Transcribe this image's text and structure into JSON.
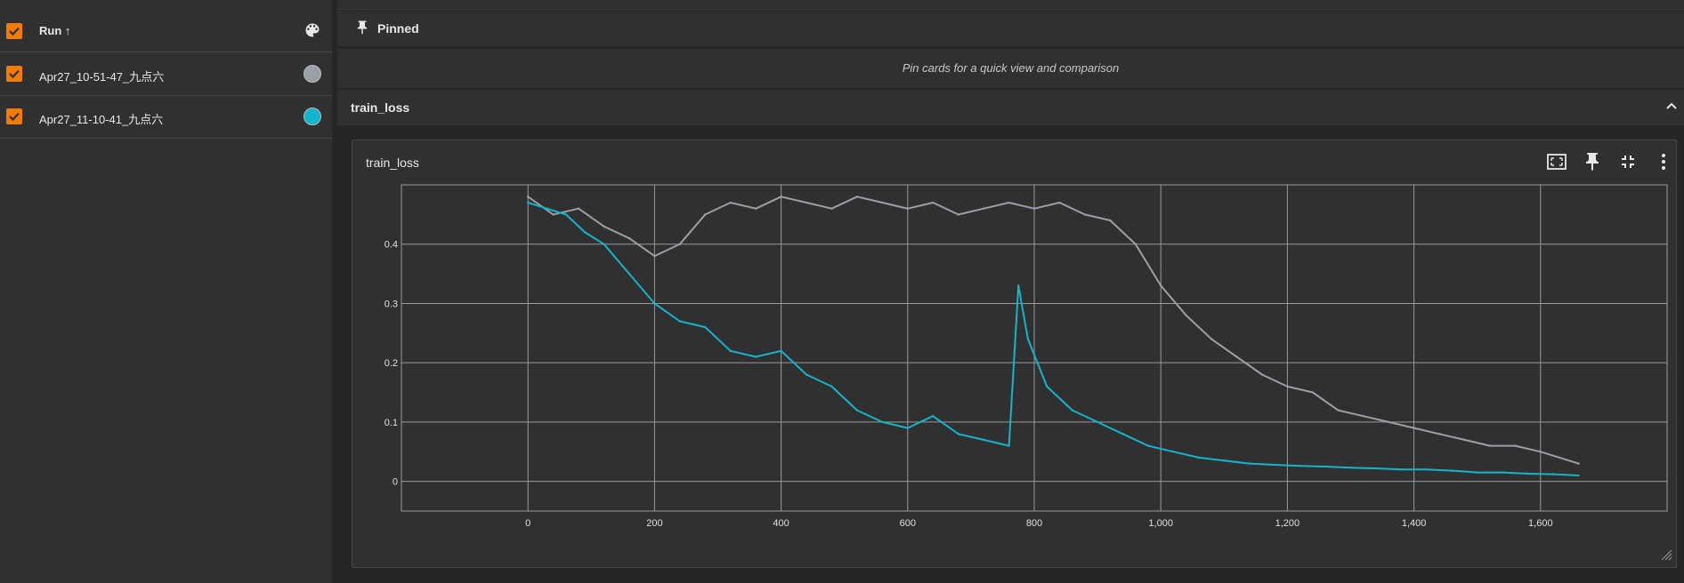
{
  "sidebar": {
    "header": {
      "label": "Run ↑",
      "checked": true
    },
    "runs": [
      {
        "label": "Apr27_10-51-47_九点六",
        "color": "#9aa0a6",
        "checked": true
      },
      {
        "label": "Apr27_11-10-41_九点六",
        "color": "#12b5cb",
        "checked": true
      }
    ],
    "palette_icon": "palette-icon"
  },
  "pinned": {
    "title": "Pinned",
    "empty_message": "Pin cards for a quick view and comparison"
  },
  "group": {
    "title": "train_loss"
  },
  "card": {
    "title": "train_loss",
    "tools": [
      "fit-domain-icon",
      "pin-icon",
      "fullscreen-exit-icon",
      "more-vert-icon"
    ]
  },
  "chart_data": {
    "type": "line",
    "title": "train_loss",
    "xlim": [
      -200,
      1800
    ],
    "ylim": [
      -0.05,
      0.5
    ],
    "x_ticks": [
      0,
      200,
      400,
      600,
      800,
      1000,
      1200,
      1400,
      1600
    ],
    "x_tick_labels": [
      "0",
      "200",
      "400",
      "600",
      "800",
      "1,000",
      "1,200",
      "1,400",
      "1,600"
    ],
    "y_ticks": [
      0,
      0.1,
      0.2,
      0.3,
      0.4
    ],
    "y_tick_labels": [
      "0",
      "0.1",
      "0.2",
      "0.3",
      "0.4"
    ],
    "grid": true,
    "series": [
      {
        "color": "#9aa0a6",
        "x": [
          0,
          40,
          80,
          120,
          160,
          200,
          240,
          280,
          320,
          360,
          400,
          440,
          480,
          520,
          560,
          600,
          640,
          680,
          720,
          760,
          800,
          840,
          880,
          920,
          960,
          1000,
          1040,
          1080,
          1120,
          1160,
          1200,
          1240,
          1280,
          1320,
          1360,
          1400,
          1440,
          1480,
          1520,
          1560,
          1600,
          1660
        ],
        "y": [
          0.48,
          0.45,
          0.46,
          0.43,
          0.41,
          0.38,
          0.4,
          0.45,
          0.47,
          0.46,
          0.48,
          0.47,
          0.46,
          0.48,
          0.47,
          0.46,
          0.47,
          0.45,
          0.46,
          0.47,
          0.46,
          0.47,
          0.45,
          0.44,
          0.4,
          0.33,
          0.28,
          0.24,
          0.21,
          0.18,
          0.16,
          0.15,
          0.12,
          0.11,
          0.1,
          0.09,
          0.08,
          0.07,
          0.06,
          0.06,
          0.05,
          0.03
        ]
      },
      {
        "color": "#12b5cb",
        "x": [
          0,
          30,
          60,
          90,
          120,
          160,
          200,
          240,
          280,
          320,
          360,
          400,
          440,
          480,
          520,
          560,
          600,
          640,
          680,
          720,
          760,
          775,
          790,
          820,
          860,
          900,
          940,
          980,
          1020,
          1060,
          1100,
          1140,
          1180,
          1220,
          1260,
          1300,
          1340,
          1380,
          1420,
          1460,
          1500,
          1540,
          1580,
          1620,
          1660
        ],
        "y": [
          0.47,
          0.46,
          0.45,
          0.42,
          0.4,
          0.35,
          0.3,
          0.27,
          0.26,
          0.22,
          0.21,
          0.22,
          0.18,
          0.16,
          0.12,
          0.1,
          0.09,
          0.11,
          0.08,
          0.07,
          0.06,
          0.33,
          0.24,
          0.16,
          0.12,
          0.1,
          0.08,
          0.06,
          0.05,
          0.04,
          0.035,
          0.03,
          0.028,
          0.026,
          0.025,
          0.023,
          0.022,
          0.02,
          0.02,
          0.018,
          0.015,
          0.015,
          0.013,
          0.012,
          0.01
        ]
      }
    ]
  }
}
